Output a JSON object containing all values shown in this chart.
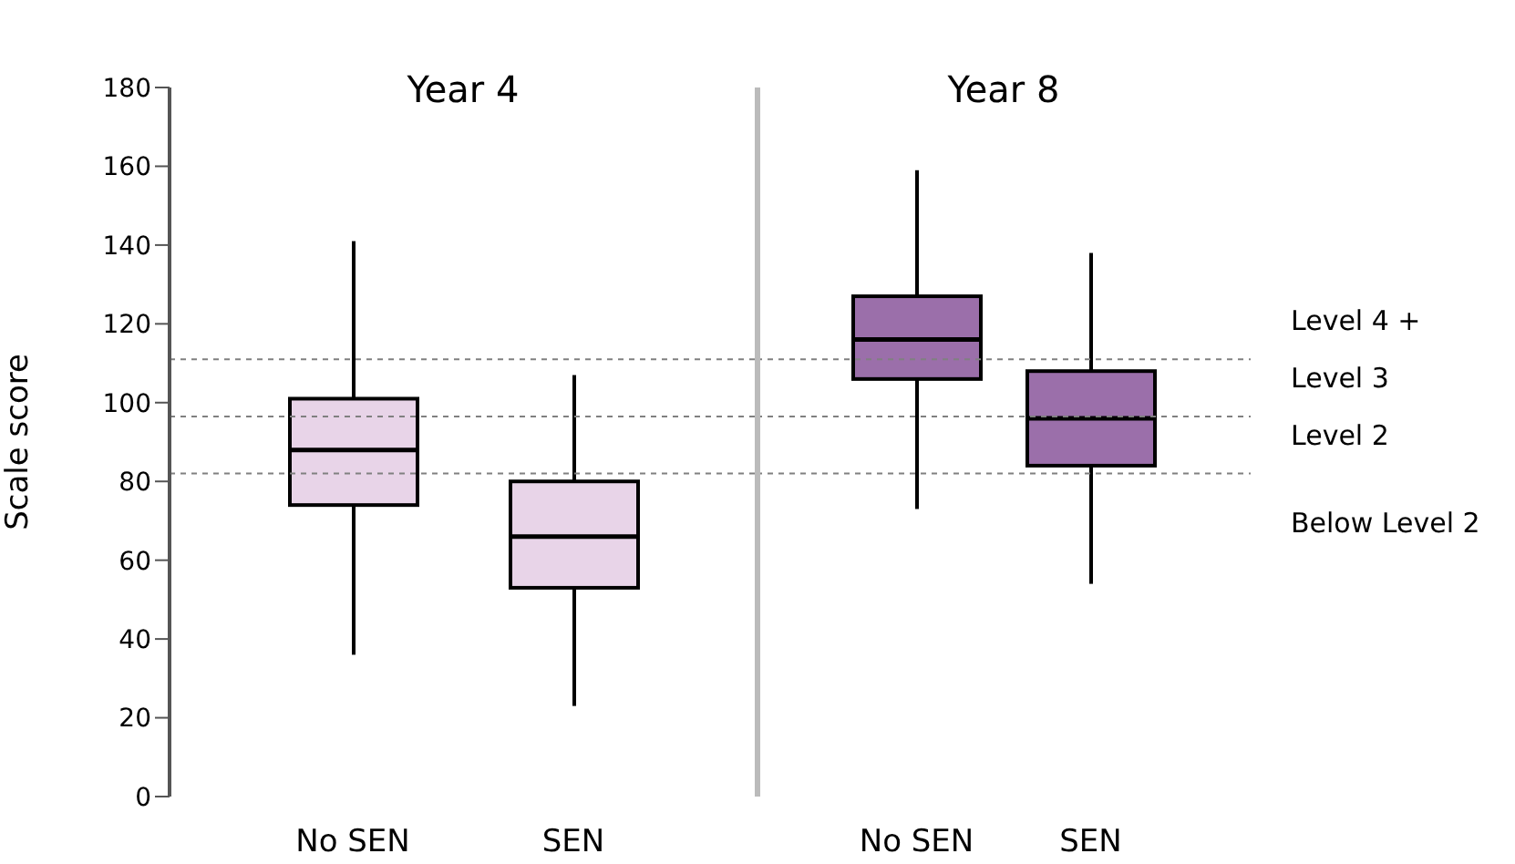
{
  "chart_data": [
    {
      "type": "box",
      "title": "Year 4",
      "ylabel": "Scale score",
      "categories": [
        "No SEN",
        "SEN"
      ],
      "ylim": [
        0,
        180
      ],
      "yticks": [
        0,
        20,
        40,
        60,
        80,
        100,
        120,
        140,
        160,
        180
      ],
      "grid": false,
      "legend": false,
      "series": [
        {
          "color": "#e8d4e8",
          "boxes": [
            {
              "low": 36,
              "q1": 74,
              "median": 88,
              "q3": 101,
              "high": 141
            },
            {
              "low": 23,
              "q1": 53,
              "median": 66,
              "q3": 80,
              "high": 107
            }
          ]
        }
      ],
      "ref_lines": [
        {
          "axis": "y",
          "value": 111,
          "line_style": "dashed",
          "color": "#808080"
        },
        {
          "axis": "y",
          "value": 96.5,
          "line_style": "dashed",
          "color": "#808080"
        },
        {
          "axis": "y",
          "value": 82,
          "line_style": "dashed",
          "color": "#808080"
        }
      ]
    },
    {
      "type": "box",
      "title": "Year 8",
      "categories": [
        "No SEN",
        "SEN"
      ],
      "ylim": [
        0,
        180
      ],
      "tick_labels": "x",
      "grid": false,
      "legend": false,
      "series": [
        {
          "color": "#9b6faa",
          "boxes": [
            {
              "low": 73,
              "q1": 106,
              "median": 116,
              "q3": 127,
              "high": 159
            },
            {
              "low": 54,
              "q1": 84,
              "median": 96,
              "q3": 108,
              "high": 138
            }
          ]
        }
      ],
      "ref_lines": [
        {
          "axis": "y",
          "value": 111,
          "label": "Level 4 +",
          "line_style": "dashed",
          "color": "#808080"
        },
        {
          "axis": "y",
          "value": 96.5,
          "label": "Level 3",
          "line_style": "dashed",
          "color": "#808080"
        },
        {
          "axis": "y",
          "value": 82,
          "label": "Level 2",
          "line_style": "dashed",
          "color": "#808080"
        }
      ],
      "annotations": [
        "Below Level 2"
      ]
    }
  ]
}
